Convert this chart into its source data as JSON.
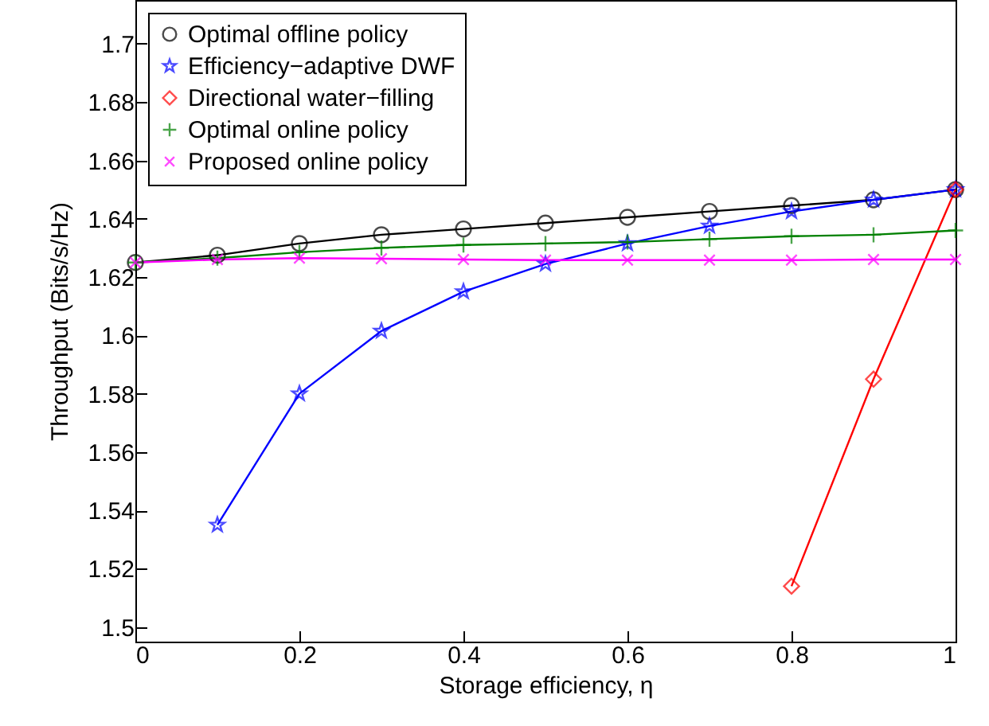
{
  "chart_data": {
    "type": "line",
    "xlabel": "Storage efficiency, η",
    "ylabel": "Throughput (Bits/s/Hz)",
    "xlim": [
      0,
      1
    ],
    "ylim": [
      1.495,
      1.715
    ],
    "xticks": [
      0,
      0.2,
      0.4,
      0.6,
      0.8,
      1
    ],
    "yticks": [
      1.5,
      1.52,
      1.54,
      1.56,
      1.58,
      1.6,
      1.62,
      1.64,
      1.66,
      1.68,
      1.7
    ],
    "grid": false,
    "legend": "top left",
    "line_style": "solid",
    "series": [
      {
        "name": "Optimal offline policy",
        "color": "#000000",
        "marker": "circle",
        "x": [
          0,
          0.1,
          0.2,
          0.3,
          0.4,
          0.5,
          0.6,
          0.7,
          0.8,
          0.9,
          1
        ],
        "values": [
          1.625,
          1.6275,
          1.6315,
          1.6345,
          1.6365,
          1.6385,
          1.6405,
          1.6425,
          1.6445,
          1.6465,
          1.65
        ]
      },
      {
        "name": "Efficiency−adaptive DWF",
        "color": "#0000ff",
        "marker": "star",
        "x": [
          0.1,
          0.2,
          0.3,
          0.4,
          0.5,
          0.6,
          0.7,
          0.8,
          0.9,
          1
        ],
        "values": [
          1.535,
          1.58,
          1.6015,
          1.615,
          1.6245,
          1.6315,
          1.6375,
          1.6425,
          1.6465,
          1.65
        ]
      },
      {
        "name": "Directional water−filling",
        "color": "#ff0000",
        "marker": "diamond",
        "x": [
          0.8,
          0.9,
          1
        ],
        "values": [
          1.514,
          1.585,
          1.65
        ]
      },
      {
        "name": "Optimal online policy",
        "color": "#008000",
        "marker": "plus",
        "x": [
          0,
          0.1,
          0.2,
          0.3,
          0.4,
          0.5,
          0.6,
          0.7,
          0.8,
          0.9,
          1
        ],
        "values": [
          1.625,
          1.6265,
          1.6285,
          1.63,
          1.631,
          1.6315,
          1.632,
          1.633,
          1.634,
          1.6345,
          1.636
        ]
      },
      {
        "name": "Proposed online policy",
        "color": "#ff00ff",
        "marker": "cross",
        "x": [
          0,
          0.1,
          0.2,
          0.3,
          0.4,
          0.5,
          0.6,
          0.7,
          0.8,
          0.9,
          1
        ],
        "values": [
          1.625,
          1.626,
          1.6265,
          1.6263,
          1.626,
          1.6258,
          1.6258,
          1.6258,
          1.6258,
          1.626,
          1.626
        ]
      }
    ]
  }
}
